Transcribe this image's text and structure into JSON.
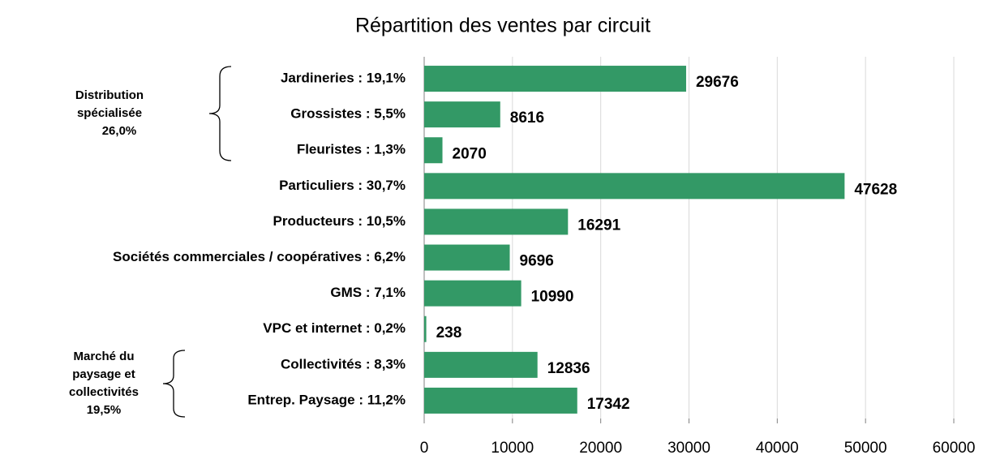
{
  "chart_data": {
    "type": "bar",
    "orientation": "horizontal",
    "title": "Répartition des ventes par circuit",
    "categories": [
      "Jardineries : 19,1%",
      "Grossistes : 5,5%",
      "Fleuristes : 1,3%",
      "Particuliers : 30,7%",
      "Producteurs : 10,5%",
      "Sociétés commerciales / coopératives : 6,2%",
      "GMS : 7,1%",
      "VPC et internet : 0,2%",
      "Collectivités : 8,3%",
      "Entrep. Paysage : 11,2%"
    ],
    "values": [
      29676,
      8616,
      2070,
      47628,
      16291,
      9696,
      10990,
      238,
      12836,
      17342
    ],
    "color": "#339966",
    "xlim": [
      0,
      60000
    ],
    "xticks": [
      0,
      10000,
      20000,
      30000,
      40000,
      50000,
      60000
    ],
    "grid": true,
    "annotations": [
      {
        "lines": [
          "Distribution",
          "spécialisée",
          "26,0%"
        ]
      },
      {
        "lines": [
          "Marché du",
          "paysage et",
          "collectivités",
          "19,5%"
        ]
      }
    ]
  }
}
